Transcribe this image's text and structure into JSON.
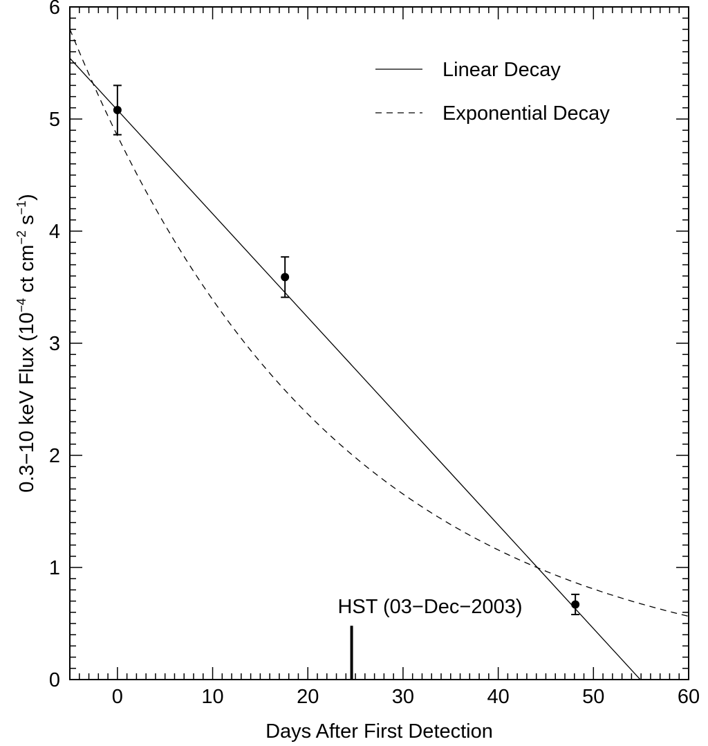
{
  "chart_data": {
    "type": "scatter",
    "xlabel": "Days After First Detection",
    "ylabel": {
      "base": "0.3−10 keV Flux (10",
      "exp1": "−4",
      "mid": " ct cm",
      "exp2": "−2",
      "mid2": " s",
      "exp3": "−1",
      "end": ")"
    },
    "xlim": [
      -5,
      60
    ],
    "ylim": [
      0,
      6
    ],
    "x_ticks": [
      0,
      10,
      20,
      30,
      40,
      50,
      60
    ],
    "x_tick_labels": [
      "0",
      "10",
      "20",
      "30",
      "40",
      "50",
      "60"
    ],
    "y_ticks": [
      0,
      1,
      2,
      3,
      4,
      5,
      6
    ],
    "y_tick_labels": [
      "0",
      "1",
      "2",
      "3",
      "4",
      "5",
      "6"
    ],
    "grid": false,
    "legend_position": "top-right",
    "legend": [
      {
        "label": "Linear Decay",
        "style": "solid"
      },
      {
        "label": "Exponential Decay",
        "style": "dashed"
      }
    ],
    "points": [
      {
        "x": 0,
        "y": 5.08,
        "err": 0.22
      },
      {
        "x": 17.6,
        "y": 3.59,
        "err": 0.18
      },
      {
        "x": 48.1,
        "y": 0.67,
        "err": 0.09
      }
    ],
    "linear_fit": {
      "intercept": 5.08,
      "slope": -0.0925
    },
    "exponential_fit": {
      "amplitude": 4.85,
      "tau": 27.9
    },
    "annotation": {
      "text": "HST (03−Dec−2003)",
      "x": 24.6,
      "marker_top_y": 0.48
    },
    "colors": {
      "line": "#000000",
      "background": "#ffffff"
    }
  }
}
